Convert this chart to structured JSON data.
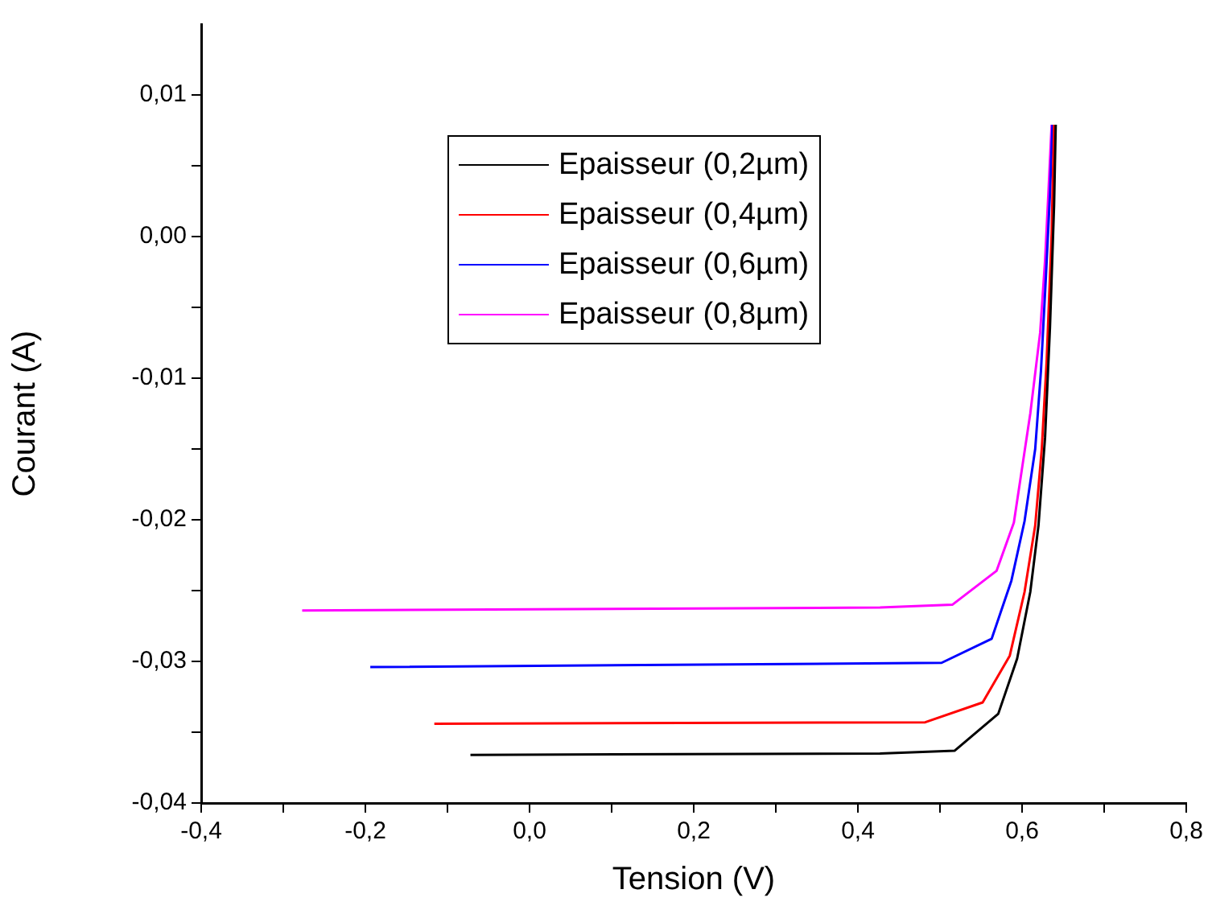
{
  "chart_data": {
    "type": "line",
    "xlabel": "Tension (V)",
    "ylabel": "Courant (A)",
    "xlim": [
      -0.4,
      0.8
    ],
    "ylim": [
      -0.04,
      0.015
    ],
    "xticks": [
      {
        "value": -0.4,
        "label": "-0,4"
      },
      {
        "value": -0.3,
        "label": null
      },
      {
        "value": -0.2,
        "label": "-0,2"
      },
      {
        "value": -0.1,
        "label": null
      },
      {
        "value": 0,
        "label": "0,0"
      },
      {
        "value": 0.1,
        "label": null
      },
      {
        "value": 0.2,
        "label": "0,2"
      },
      {
        "value": 0.3,
        "label": null
      },
      {
        "value": 0.4,
        "label": "0,4"
      },
      {
        "value": 0.5,
        "label": null
      },
      {
        "value": 0.6,
        "label": "0,6"
      },
      {
        "value": 0.7,
        "label": null
      },
      {
        "value": 0.8,
        "label": "0,8"
      }
    ],
    "yticks": [
      {
        "value": -0.04,
        "label": "-0,04"
      },
      {
        "value": -0.035,
        "label": null
      },
      {
        "value": -0.03,
        "label": "-0,03"
      },
      {
        "value": -0.025,
        "label": null
      },
      {
        "value": -0.02,
        "label": "-0,02"
      },
      {
        "value": -0.015,
        "label": null
      },
      {
        "value": -0.01,
        "label": "-0,01"
      },
      {
        "value": -0.005,
        "label": null
      },
      {
        "value": 0,
        "label": "0,00"
      },
      {
        "value": 0.005,
        "label": null
      },
      {
        "value": 0.01,
        "label": "0,01"
      }
    ],
    "grid": false,
    "legend": "top",
    "marker": "none",
    "line_style": "solid",
    "series": [
      {
        "name": "Epaisseur (0,2µm)",
        "color": "#000000",
        "x": [
          -0.072,
          0.427,
          0.518,
          0.571,
          0.594,
          0.61,
          0.62,
          0.628,
          0.634,
          0.639,
          0.641
        ],
        "values": [
          -0.0366,
          -0.0365,
          -0.0363,
          -0.0337,
          -0.0298,
          -0.0251,
          -0.0204,
          -0.0142,
          -0.0064,
          0.0022,
          0.0079
        ]
      },
      {
        "name": "Epaisseur (0,4µm)",
        "color": "#ff0000",
        "x": [
          -0.116,
          0.482,
          0.552,
          0.585,
          0.603,
          0.616,
          0.624,
          0.63,
          0.636,
          0.639
        ],
        "values": [
          -0.0344,
          -0.0343,
          -0.0329,
          -0.0296,
          -0.0251,
          -0.0204,
          -0.015,
          -0.0087,
          0.0002,
          0.0079
        ]
      },
      {
        "name": "Epaisseur (0,6µm)",
        "color": "#0000ff",
        "x": [
          -0.194,
          0.502,
          0.563,
          0.587,
          0.603,
          0.616,
          0.623,
          0.629,
          0.634,
          0.637
        ],
        "values": [
          -0.0304,
          -0.0301,
          -0.0284,
          -0.0243,
          -0.0201,
          -0.015,
          -0.0095,
          -0.0029,
          0.003,
          0.0079
        ]
      },
      {
        "name": "Epaisseur (0,8µm)",
        "color": "#ff00ff",
        "x": [
          -0.277,
          0.427,
          0.515,
          0.569,
          0.59,
          0.61,
          0.622,
          0.628,
          0.632,
          0.636
        ],
        "values": [
          -0.0264,
          -0.0262,
          -0.026,
          -0.0236,
          -0.0202,
          -0.0125,
          -0.0068,
          -0.0017,
          0.003,
          0.0079
        ]
      }
    ]
  }
}
